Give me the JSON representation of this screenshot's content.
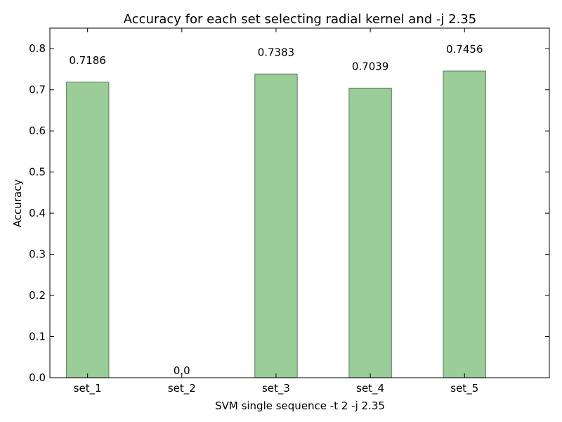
{
  "chart_data": {
    "type": "bar",
    "title": "Accuracy for each set selecting radial kernel and -j 2.35",
    "xlabel": "SVM single sequence -t 2 -j 2.35",
    "ylabel": "Accuracy",
    "categories": [
      "set_1",
      "set_2",
      "set_3",
      "set_4",
      "set_5"
    ],
    "values": [
      0.7186,
      0.0,
      0.7383,
      0.7039,
      0.7456
    ],
    "value_labels": [
      "0.7186",
      "0.0",
      "0.7383",
      "0.7039",
      "0.7456"
    ],
    "ylim": [
      0,
      0.85
    ],
    "yticks": [
      0.0,
      0.1,
      0.2,
      0.3,
      0.4,
      0.5,
      0.6,
      0.7,
      0.8
    ],
    "ytick_labels": [
      "0.0",
      "0.1",
      "0.2",
      "0.3",
      "0.4",
      "0.5",
      "0.6",
      "0.7",
      "0.8"
    ],
    "grid": false,
    "legend": "none",
    "colors": {
      "bar_fill": "#9acd98",
      "bar_edge": "#6f8a6e"
    }
  }
}
